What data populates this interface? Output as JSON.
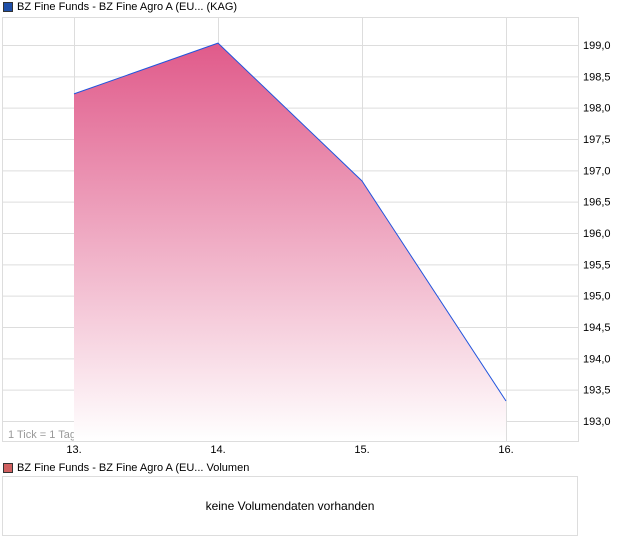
{
  "chart_data": {
    "type": "area",
    "legend": "BZ Fine Funds - BZ Fine Agro A (EU... (KAG)",
    "legend_color": "#1f4fa8",
    "line_color": "#2255dd",
    "fill_color_top": "#e05a8a",
    "x": [
      "13.",
      "14.",
      "15.",
      "16."
    ],
    "values": [
      198.22,
      199.03,
      196.83,
      193.32
    ],
    "ylim": [
      192.8,
      199.45
    ],
    "yticks": [
      "193,0",
      "193,5",
      "194,0",
      "194,5",
      "195,0",
      "195,5",
      "196,0",
      "196,5",
      "197,0",
      "197,5",
      "198,0",
      "198,5",
      "199,0"
    ],
    "ytick_values": [
      193,
      193.5,
      194,
      194.5,
      195,
      195.5,
      196,
      196.5,
      197,
      197.5,
      198,
      198.5,
      199
    ],
    "axis_position": "right",
    "grid": true,
    "annotation": "1 Tick = 1 Tag"
  },
  "volume": {
    "legend": "BZ Fine Funds - BZ Fine Agro A (EU... Volumen",
    "legend_color": "#d06060",
    "message": "keine Volumendaten vorhanden"
  }
}
